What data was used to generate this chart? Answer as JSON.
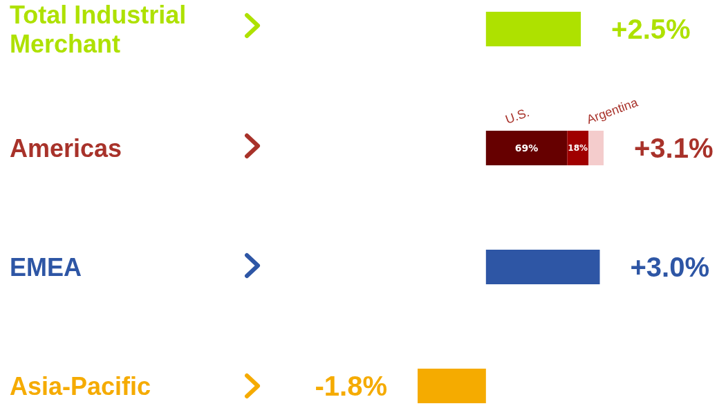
{
  "chart_data": {
    "type": "bar",
    "orientation": "horizontal",
    "stacked": true,
    "categories": [
      "Total Industrial Merchant",
      "Americas",
      "EMEA",
      "Asia-Pacific"
    ],
    "series": [
      {
        "colors": [
          "#aee100",
          "#a8322a",
          "#2e56a5",
          "#f5ab00"
        ],
        "values": [
          2.5,
          null,
          3.0,
          -1.8
        ],
        "value_labels": [
          "+2.5%",
          null,
          "+3.0%",
          "-1.8%"
        ]
      },
      {
        "name": "U.S.",
        "color": "#660000",
        "values": [
          null,
          2.14,
          null,
          null
        ]
      },
      {
        "name": "Argentina",
        "color": "#a00000",
        "values": [
          null,
          0.56,
          null,
          null
        ]
      },
      {
        "color": "#f4cccc",
        "values": [
          null,
          0.4,
          null,
          null
        ]
      }
    ],
    "totals": [
      null,
      "+3.1%",
      null,
      null
    ],
    "annotations": [
      "69%",
      "18%"
    ]
  }
}
